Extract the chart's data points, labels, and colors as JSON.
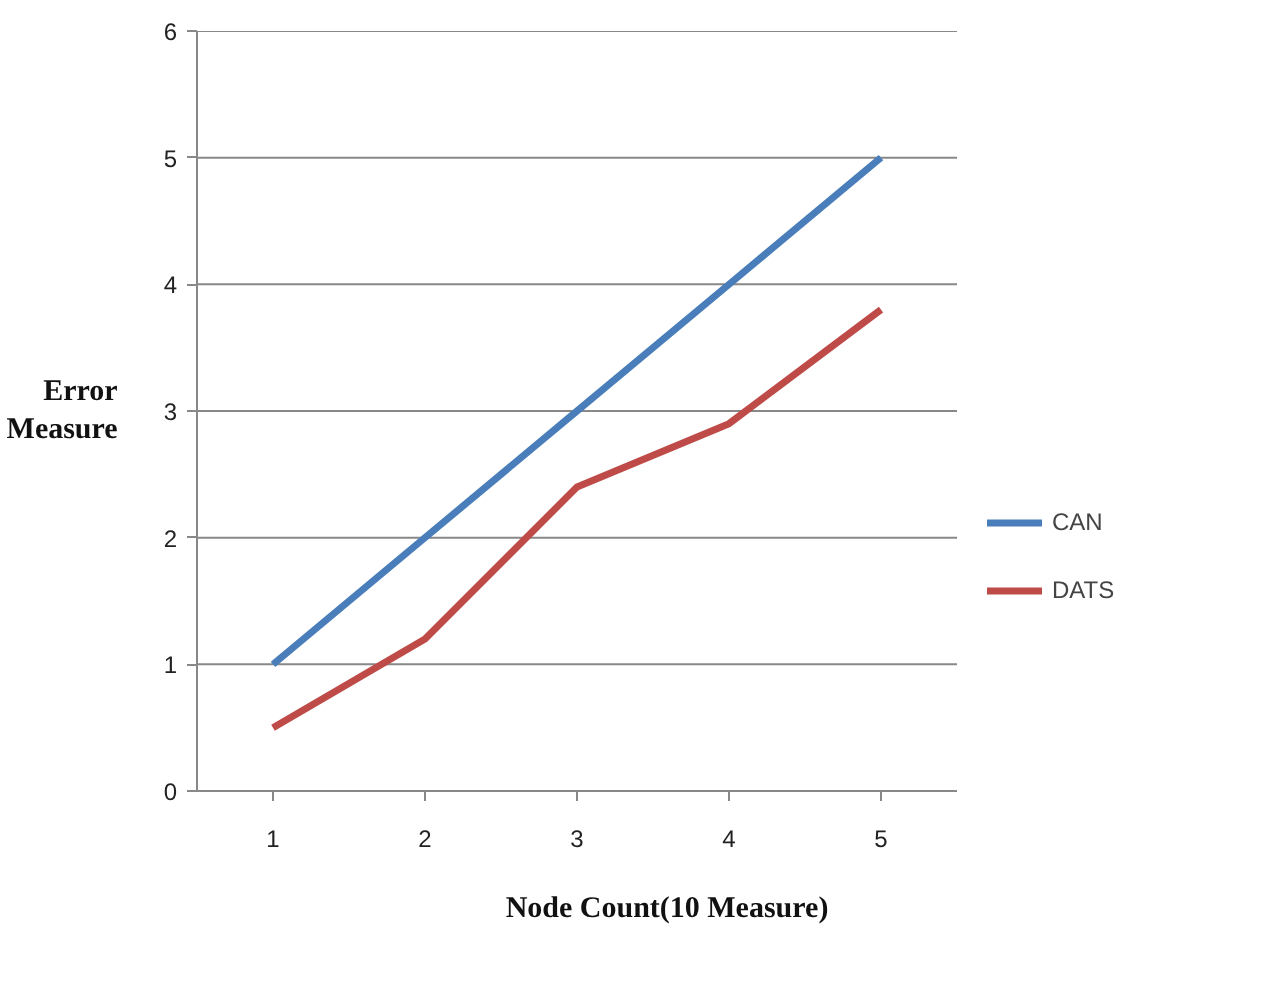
{
  "chart_data": {
    "type": "line",
    "xlabel": "Node Count(10 Measure)",
    "ylabel": "Error Measure",
    "categories": [
      "1",
      "2",
      "3",
      "4",
      "5"
    ],
    "series": [
      {
        "name": "CAN",
        "color": "#4a7ebb",
        "values": [
          1,
          2,
          3,
          4,
          5
        ]
      },
      {
        "name": "DATS",
        "color": "#be4b48",
        "values": [
          0.5,
          1.2,
          2.4,
          2.9,
          3.8
        ]
      }
    ],
    "ylim": [
      0,
      6
    ],
    "yticks": [
      0,
      1,
      2,
      3,
      4,
      5,
      6
    ],
    "grid": "y",
    "legend": "right",
    "marker": "none",
    "line_style": "solid"
  }
}
